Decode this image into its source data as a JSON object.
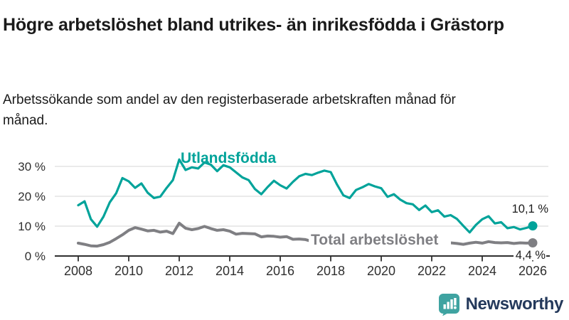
{
  "header": {
    "title": "Högre arbetslöshet bland utrikes- än inrikesfödda i Grästorp",
    "subtitle": "Arbetssökande som andel av den registerbaserade arbetskraften månad för månad."
  },
  "chart_data": {
    "type": "line",
    "title": "Högre arbetslöshet bland utrikes- än inrikesfödda i Grästorp",
    "xlabel": "",
    "ylabel": "Arbetssökande som andel av den registerbaserade arbetskraften",
    "xlim": [
      2008,
      2026
    ],
    "ylim": [
      0,
      33
    ],
    "grid": "horizontal",
    "x_step_years": 0.25,
    "x_ticks": [
      2008,
      2010,
      2012,
      2014,
      2016,
      2018,
      2020,
      2022,
      2024,
      2026
    ],
    "y_ticks": [
      {
        "value": 0,
        "label": "0 %"
      },
      {
        "value": 10,
        "label": "10 %"
      },
      {
        "value": 20,
        "label": "20 %"
      },
      {
        "value": 30,
        "label": "30 %"
      }
    ],
    "series": [
      {
        "name": "Utlandsfödda",
        "color": "#00a39a",
        "stroke_width": 3.2,
        "end_label": "10,1 %",
        "end_value": 10.1,
        "x_start": 2008.0,
        "values": [
          17.0,
          18.3,
          12.3,
          9.8,
          13.2,
          18.0,
          21.0,
          26.1,
          25.0,
          22.8,
          24.3,
          21.2,
          19.4,
          19.9,
          22.8,
          25.4,
          32.3,
          28.8,
          29.7,
          29.3,
          31.3,
          30.6,
          28.4,
          30.4,
          29.7,
          28.0,
          26.3,
          25.4,
          22.4,
          20.7,
          23.1,
          25.2,
          23.7,
          22.6,
          24.8,
          26.7,
          27.5,
          27.1,
          27.9,
          28.6,
          28.1,
          23.9,
          20.3,
          19.4,
          22.1,
          23.0,
          24.1,
          23.3,
          22.7,
          19.8,
          20.7,
          18.9,
          17.7,
          17.3,
          15.4,
          16.9,
          14.7,
          15.3,
          13.2,
          13.7,
          12.4,
          10.1,
          7.9,
          10.4,
          12.3,
          13.3,
          10.9,
          11.3,
          9.3,
          9.7,
          8.9,
          9.4,
          10.1
        ]
      },
      {
        "name": "Total arbetslöshet",
        "color": "#7f7f83",
        "stroke_width": 4,
        "end_label": "4,4 %",
        "end_value": 4.4,
        "x_start": 2008.0,
        "values": [
          4.3,
          3.9,
          3.4,
          3.3,
          3.8,
          4.6,
          5.8,
          7.1,
          8.6,
          9.5,
          9.0,
          8.4,
          8.6,
          8.0,
          8.3,
          7.5,
          11.0,
          9.3,
          8.8,
          9.2,
          9.9,
          9.2,
          8.6,
          8.8,
          8.3,
          7.3,
          7.6,
          7.5,
          7.4,
          6.4,
          6.7,
          6.6,
          6.3,
          6.5,
          5.6,
          5.7,
          5.5,
          4.9,
          5.0,
          5.1,
          5.2,
          4.9,
          4.7,
          4.8,
          4.9,
          5.0,
          5.1,
          5.2,
          5.3,
          5.8,
          5.9,
          5.6,
          5.3,
          5.0,
          4.7,
          4.5,
          4.3,
          4.2,
          4.1,
          4.4,
          4.2,
          3.9,
          4.3,
          4.6,
          4.3,
          4.8,
          4.5,
          4.4,
          4.5,
          4.2,
          4.4,
          4.3,
          4.4
        ]
      }
    ]
  },
  "branding": {
    "logo_text": "Newsworthy",
    "logo_icon": "bar-chart-speech-bubble-icon",
    "icon_color": "#3fa3a1",
    "text_color": "#24395b"
  }
}
